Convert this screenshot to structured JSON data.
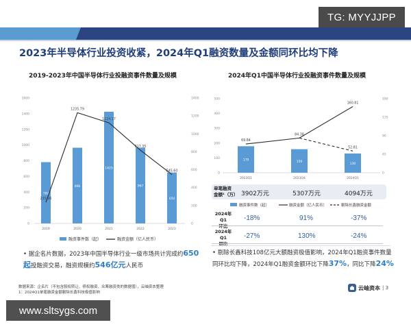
{
  "watermark_top": "TG: MYYJJPP",
  "watermark_bottom": "www.sltsygs.com",
  "page_title": "2023年半导体行业投资收紧，2024年Q1融资数量及金额同环比均下降",
  "colors": {
    "band_dark": "#2a4580",
    "band_light": "#5a9bd0",
    "title": "#1f3e7a",
    "bar": "#5b9bd5",
    "line": "#2b2b2b",
    "highlight": "#2d7ec4",
    "pct": "#2f5f9a",
    "table_bg": "#e8ecf3"
  },
  "chart_data": [
    {
      "type": "bar+line",
      "title": "2019-2023年中国半导体行业投融资事件数量及规模",
      "categories": [
        "2019",
        "2020",
        "2021",
        "2022",
        "2023"
      ],
      "series": [
        {
          "name": "融资事件数（起）",
          "kind": "bar",
          "axis": "left",
          "values": [
            782,
            966,
            1425,
            967,
            650
          ]
        },
        {
          "name": "融资金额（亿人民币）",
          "kind": "line",
          "axis": "right",
          "values": [
            235.96,
            1235.79,
            1124.17,
            817.35,
            545.6
          ]
        }
      ],
      "y_left": {
        "min": 0,
        "max": 1600,
        "ticks": [
          0,
          200,
          400,
          600,
          800,
          1000,
          1200,
          1400,
          1600
        ]
      },
      "y_right": {
        "min": 0,
        "max": 1400,
        "ticks": [
          0,
          200,
          400,
          600,
          800,
          1000,
          1200,
          1400
        ]
      },
      "bar_labels": [
        "782",
        "966",
        "1425",
        "967",
        "650"
      ],
      "line_labels": [
        "235.96",
        "1235.79",
        "1124.17",
        "817.35",
        "545.60"
      ],
      "legend": [
        "融资事件数（起）",
        "融资金额（亿人民币）"
      ],
      "legend_position": "bottom",
      "grid": false
    },
    {
      "type": "bar+line",
      "title": "2024年Q1中国半导体行业投融资事件数量及规模",
      "categories": [
        "2023Q1",
        "2023Q4",
        "2024Q1"
      ],
      "series": [
        {
          "name": "融资事件数（起）",
          "kind": "bar",
          "axis": "left",
          "values": [
            179,
            159,
            130
          ]
        },
        {
          "name": "融资金额（亿人民币）",
          "kind": "line",
          "axis": "right",
          "values": [
            69.84,
            84.38,
            160.81
          ]
        },
        {
          "name": "剔除长鑫融资金额",
          "kind": "dashed-line",
          "axis": "right",
          "values": [
            null,
            84.38,
            52.81
          ]
        }
      ],
      "y_left": {
        "min": 0,
        "max": 500,
        "ticks": [
          0,
          100,
          200,
          300,
          400,
          500
        ]
      },
      "y_right": {
        "min": 0,
        "max": 180,
        "ticks": [
          0,
          45,
          90,
          135,
          180
        ]
      },
      "bar_labels": [
        "179",
        "159",
        "130"
      ],
      "line_labels": [
        "69.84",
        "84.38",
        "160.81"
      ],
      "dashed_labels": [
        "",
        "",
        "52.81"
      ],
      "legend": [
        "融资事件数（起）",
        "融资金额（亿人民币）",
        "剔除长鑫融资金额"
      ],
      "legend_position": "bottom",
      "grid": false
    }
  ],
  "left_chart": {
    "title": "2019-2023年中国半导体行业投融资事件数量及规模",
    "legend_bar": "融资事件数（起）",
    "legend_line": "融资金额（亿人民币）"
  },
  "right_chart": {
    "title": "2024年Q1中国半导体行业投融资事件数量及规模",
    "legend_bar": "融资事件数（起）",
    "legend_line": "融资金额（亿人民币）",
    "legend_dashed": "剔除长鑫融资金额",
    "avg_row": {
      "label_line1": "单笔融资",
      "label_line2": "金额¹（万）",
      "values": [
        "3902万元",
        "5307万元",
        "4094万元"
      ]
    },
    "qoq_row": {
      "label_line1": "2024年Q1",
      "label_line2": "环比",
      "values": [
        "-18%",
        "91%",
        "-37%"
      ]
    },
    "yoy_row": {
      "label_line1": "2024年Q1",
      "label_line2": "同比",
      "values": [
        "-27%",
        "130%",
        "-24%"
      ]
    }
  },
  "bullets": {
    "left": {
      "prefix": "据企名片数据，2023年中国半导体行业一级市场共计完成约",
      "hl1": "650起",
      "mid": "投融资交易，融资规模约",
      "hl2": "546亿元",
      "suffix": "人民币"
    },
    "right": {
      "prefix": "剔除长鑫科技108亿元大额融资极值影响，2024年Q1融资事件数量同环比均下降，2024年Q1融资金额环比下降",
      "hl1": "37%",
      "mid": "，同比下降",
      "hl2": "24%"
    }
  },
  "footer": {
    "source": "数据来源：企名片（不包含股权转让、债权融资、众筹融资类的数据值），云岫资本整理",
    "note": "1：2024Q1单笔融资金额剔除长鑫科技极值影响",
    "logo_text": "云岫资本",
    "page_number": "| 3"
  }
}
